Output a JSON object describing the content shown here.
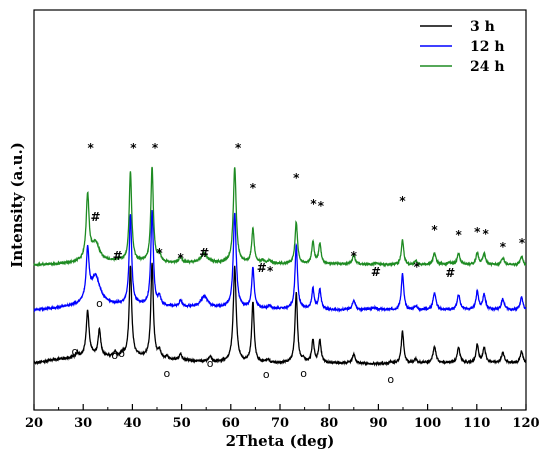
{
  "chart_data": {
    "type": "line",
    "title": "",
    "xlabel": "2Theta (deg)",
    "ylabel": "Intensity (a.u.)",
    "xlim": [
      20,
      120
    ],
    "xticks": [
      20,
      30,
      40,
      50,
      60,
      70,
      80,
      90,
      100,
      110,
      120
    ],
    "y_ticks_visible": false,
    "grid": false,
    "legend_position": "top-right",
    "series": [
      {
        "name": "3 h",
        "color": "#000000",
        "baseline": 47,
        "baseline_noise": [
          [
            20,
            0
          ],
          [
            24,
            3
          ],
          [
            27,
            5
          ],
          [
            30,
            6
          ],
          [
            32,
            8
          ],
          [
            36,
            6
          ],
          [
            40,
            7
          ],
          [
            45,
            4
          ],
          [
            48,
            3
          ],
          [
            52,
            2
          ],
          [
            56,
            1
          ],
          [
            60,
            1
          ],
          [
            66,
            0
          ],
          [
            70,
            0
          ],
          [
            80,
            0
          ],
          [
            90,
            -1
          ],
          [
            100,
            0
          ],
          [
            110,
            0
          ],
          [
            120,
            0
          ]
        ],
        "peaks": [
          [
            28.8,
            4,
            0.3
          ],
          [
            30.9,
            45,
            0.35
          ],
          [
            33.3,
            26,
            0.3
          ],
          [
            36.5,
            4,
            0.35
          ],
          [
            38.0,
            3,
            0.3
          ],
          [
            39.6,
            90,
            0.3
          ],
          [
            44.0,
            95,
            0.3
          ],
          [
            45.5,
            8,
            0.3
          ],
          [
            47.0,
            3,
            0.3
          ],
          [
            49.8,
            6,
            0.35
          ],
          [
            55.8,
            5,
            0.35
          ],
          [
            60.8,
            95,
            0.35
          ],
          [
            64.5,
            60,
            0.3
          ],
          [
            67.5,
            3,
            0.3
          ],
          [
            73.3,
            70,
            0.3
          ],
          [
            74.8,
            3,
            0.3
          ],
          [
            76.7,
            22,
            0.3
          ],
          [
            78.1,
            22,
            0.3
          ],
          [
            85.0,
            9,
            0.35
          ],
          [
            92.5,
            2,
            0.3
          ],
          [
            94.9,
            32,
            0.3
          ],
          [
            97.6,
            4,
            0.3
          ],
          [
            101.4,
            16,
            0.35
          ],
          [
            106.3,
            15,
            0.35
          ],
          [
            110.1,
            18,
            0.3
          ],
          [
            111.5,
            15,
            0.35
          ],
          [
            115.3,
            10,
            0.35
          ],
          [
            119.1,
            12,
            0.3
          ]
        ]
      },
      {
        "name": "12 h",
        "color": "#0000FF",
        "baseline": 100,
        "baseline_noise": [
          [
            20,
            0
          ],
          [
            25,
            2
          ],
          [
            30,
            5
          ],
          [
            40,
            5
          ],
          [
            50,
            3
          ],
          [
            60,
            2
          ],
          [
            70,
            1
          ],
          [
            80,
            0
          ],
          [
            90,
            0
          ],
          [
            100,
            0
          ],
          [
            110,
            0
          ],
          [
            120,
            0
          ]
        ],
        "peaks": [
          [
            30.9,
            50,
            0.35
          ],
          [
            32.5,
            28,
            1.1
          ],
          [
            39.6,
            90,
            0.3
          ],
          [
            44.0,
            95,
            0.3
          ],
          [
            45.5,
            9,
            0.3
          ],
          [
            49.8,
            6,
            0.35
          ],
          [
            54.6,
            11,
            0.8
          ],
          [
            60.8,
            95,
            0.35
          ],
          [
            64.5,
            40,
            0.3
          ],
          [
            67.9,
            3,
            0.4
          ],
          [
            73.3,
            64,
            0.3
          ],
          [
            76.7,
            20,
            0.3
          ],
          [
            78.1,
            20,
            0.3
          ],
          [
            85.0,
            10,
            0.35
          ],
          [
            89.0,
            2,
            0.8
          ],
          [
            94.9,
            36,
            0.3
          ],
          [
            97.6,
            4,
            0.3
          ],
          [
            101.4,
            17,
            0.35
          ],
          [
            106.3,
            15,
            0.35
          ],
          [
            110.1,
            18,
            0.3
          ],
          [
            111.5,
            15,
            0.35
          ],
          [
            115.3,
            11,
            0.35
          ],
          [
            119.1,
            13,
            0.3
          ]
        ]
      },
      {
        "name": "24 h",
        "color": "#1E8B22",
        "baseline": 145,
        "baseline_noise": [
          [
            20,
            0
          ],
          [
            25,
            1
          ],
          [
            30,
            3
          ],
          [
            40,
            3
          ],
          [
            50,
            2
          ],
          [
            60,
            2
          ],
          [
            70,
            1
          ],
          [
            80,
            1
          ],
          [
            90,
            0
          ],
          [
            100,
            0
          ],
          [
            110,
            0
          ],
          [
            120,
            0
          ]
        ],
        "peaks": [
          [
            30.9,
            65,
            0.35
          ],
          [
            32.5,
            18,
            1.0
          ],
          [
            37.0,
            2,
            0.6
          ],
          [
            39.6,
            90,
            0.3
          ],
          [
            44.0,
            95,
            0.3
          ],
          [
            45.5,
            8,
            0.3
          ],
          [
            49.8,
            6,
            0.35
          ],
          [
            54.6,
            9,
            0.8
          ],
          [
            60.8,
            95,
            0.35
          ],
          [
            64.5,
            34,
            0.3
          ],
          [
            66.5,
            3,
            0.4
          ],
          [
            67.9,
            3,
            0.4
          ],
          [
            73.3,
            42,
            0.3
          ],
          [
            76.7,
            21,
            0.3
          ],
          [
            78.1,
            20,
            0.3
          ],
          [
            85.0,
            9,
            0.35
          ],
          [
            89.5,
            2,
            0.6
          ],
          [
            94.9,
            25,
            0.3
          ],
          [
            97.6,
            4,
            0.3
          ],
          [
            101.4,
            12,
            0.35
          ],
          [
            104.5,
            2,
            0.5
          ],
          [
            106.3,
            11,
            0.35
          ],
          [
            110.1,
            12,
            0.3
          ],
          [
            111.5,
            11,
            0.35
          ],
          [
            115.3,
            7,
            0.35
          ],
          [
            119.1,
            9,
            0.3
          ]
        ]
      }
    ],
    "annotations": [
      {
        "text": "*",
        "x": 31.5,
        "y": 258
      },
      {
        "text": "*",
        "x": 40.2,
        "y": 258
      },
      {
        "text": "*",
        "x": 44.6,
        "y": 258
      },
      {
        "text": "*",
        "x": 61.5,
        "y": 258
      },
      {
        "text": "#",
        "x": 32.5,
        "y": 189
      },
      {
        "text": "#",
        "x": 37.0,
        "y": 150
      },
      {
        "text": "*",
        "x": 45.5,
        "y": 153
      },
      {
        "text": "*",
        "x": 49.8,
        "y": 148
      },
      {
        "text": "#",
        "x": 54.6,
        "y": 153
      },
      {
        "text": "*",
        "x": 64.5,
        "y": 218
      },
      {
        "text": "#",
        "x": 66.3,
        "y": 138
      },
      {
        "text": "*",
        "x": 68.0,
        "y": 135
      },
      {
        "text": "*",
        "x": 73.3,
        "y": 228
      },
      {
        "text": "*",
        "x": 76.8,
        "y": 202
      },
      {
        "text": "*",
        "x": 78.3,
        "y": 200
      },
      {
        "text": "*",
        "x": 85.0,
        "y": 150
      },
      {
        "text": "#",
        "x": 89.5,
        "y": 134
      },
      {
        "text": "*",
        "x": 94.9,
        "y": 205
      },
      {
        "text": "*",
        "x": 97.8,
        "y": 139
      },
      {
        "text": "*",
        "x": 101.4,
        "y": 176
      },
      {
        "text": "#",
        "x": 104.6,
        "y": 133
      },
      {
        "text": "*",
        "x": 106.3,
        "y": 171
      },
      {
        "text": "*",
        "x": 110.1,
        "y": 174
      },
      {
        "text": "*",
        "x": 111.8,
        "y": 172
      },
      {
        "text": "*",
        "x": 115.3,
        "y": 159
      },
      {
        "text": "*",
        "x": 119.2,
        "y": 163
      },
      {
        "text": "o",
        "x": 28.3,
        "y": 55
      },
      {
        "text": "o",
        "x": 33.3,
        "y": 103
      },
      {
        "text": "o",
        "x": 36.4,
        "y": 51
      },
      {
        "text": "o",
        "x": 37.8,
        "y": 53
      },
      {
        "text": "o",
        "x": 47.0,
        "y": 33
      },
      {
        "text": "o",
        "x": 55.8,
        "y": 43
      },
      {
        "text": "o",
        "x": 67.2,
        "y": 32
      },
      {
        "text": "o",
        "x": 74.8,
        "y": 33
      },
      {
        "text": "o",
        "x": 92.5,
        "y": 27
      }
    ]
  }
}
